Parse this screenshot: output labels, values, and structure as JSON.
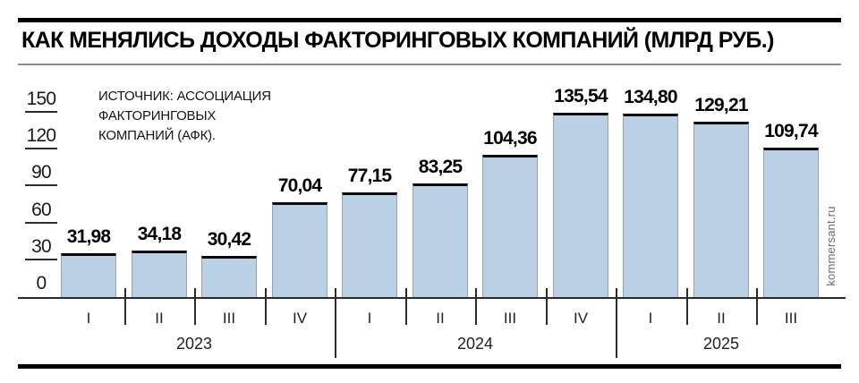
{
  "watermark": "kommersant.ru",
  "source": {
    "text": "ИСТОЧНИК: АССОЦИАЦИЯ\nФАКТОРИНГОВЫХ\nКОМПАНИЙ (АФК)."
  },
  "chart_data": {
    "type": "bar",
    "title": "КАК МЕНЯЛИСЬ ДОХОДЫ ФАКТОРИНГОВЫХ КОМПАНИЙ (МЛРД РУБ.)",
    "source_note": "ИСТОЧНИК: АССОЦИАЦИЯ ФАКТОРИНГОВЫХ КОМПАНИЙ (АФК).",
    "categories": [
      "I",
      "II",
      "III",
      "IV",
      "I",
      "II",
      "III",
      "IV",
      "I",
      "II",
      "III"
    ],
    "values": [
      31.98,
      34.18,
      30.42,
      70.04,
      77.15,
      83.25,
      104.36,
      135.54,
      134.8,
      129.21,
      109.74
    ],
    "value_labels": [
      "31,98",
      "34,18",
      "30,42",
      "70,04",
      "77,15",
      "83,25",
      "104,36",
      "135,54",
      "134,80",
      "129,21",
      "109,74"
    ],
    "year_groups": [
      {
        "label": "2023",
        "quarters": 4
      },
      {
        "label": "2024",
        "quarters": 4
      },
      {
        "label": "2025",
        "quarters": 3
      }
    ],
    "xlabel": "",
    "ylabel": "",
    "ylim": [
      0,
      150
    ],
    "yticks": [
      0,
      30,
      60,
      90,
      120,
      150
    ],
    "grid": false,
    "legend": "none",
    "bar_color": "#bad1e5",
    "bar_top_border_color": "#0a0a0a",
    "axis_color": "#2b2b2b"
  }
}
